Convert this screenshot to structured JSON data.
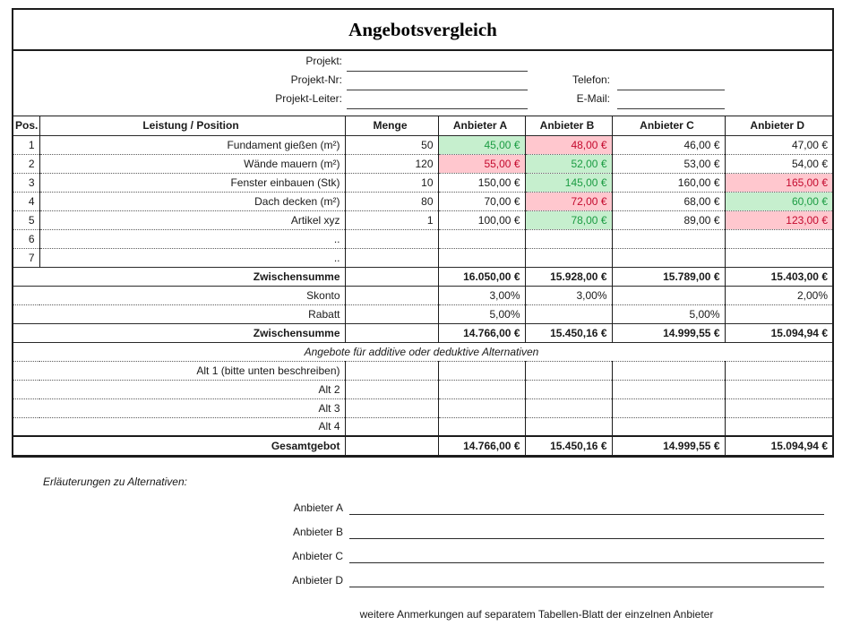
{
  "title": "Angebotsvergleich",
  "project_fields": {
    "left": [
      {
        "label": "Projekt:",
        "value": ""
      },
      {
        "label": "Projekt-Nr:",
        "value": ""
      },
      {
        "label": "Projekt-Leiter:",
        "value": ""
      }
    ],
    "right": [
      {
        "label": "Telefon:",
        "value": ""
      },
      {
        "label": "E-Mail:",
        "value": ""
      }
    ]
  },
  "colors": {
    "best_bg": "#c6efce",
    "best_text": "#1c9c43",
    "worst_bg": "#ffc7ce",
    "worst_text": "#c40a2e"
  },
  "table": {
    "columns": [
      "Pos.",
      "Leistung / Position",
      "Menge",
      "Anbieter A",
      "Anbieter B",
      "Anbieter C",
      "Anbieter D"
    ],
    "rows": [
      {
        "type": "header",
        "top": "none",
        "cells": [
          "Pos.",
          "Leistung / Position",
          "Menge",
          "Anbieter A",
          "Anbieter B",
          "Anbieter C",
          "Anbieter D"
        ]
      },
      {
        "type": "item",
        "top": "solid",
        "pos": "1",
        "leistung": "Fundament gießen (m²)",
        "menge": "50",
        "values": [
          {
            "t": "45,00 €",
            "s": "best"
          },
          {
            "t": "48,00 €",
            "s": "worst"
          },
          {
            "t": "46,00 €",
            "s": ""
          },
          {
            "t": "47,00 €",
            "s": ""
          }
        ]
      },
      {
        "type": "item",
        "top": "dotted",
        "pos": "2",
        "leistung": "Wände mauern (m²)",
        "menge": "120",
        "values": [
          {
            "t": "55,00 €",
            "s": "worst"
          },
          {
            "t": "52,00 €",
            "s": "best"
          },
          {
            "t": "53,00 €",
            "s": ""
          },
          {
            "t": "54,00 €",
            "s": ""
          }
        ]
      },
      {
        "type": "item",
        "top": "dotted",
        "pos": "3",
        "leistung": "Fenster einbauen (Stk)",
        "menge": "10",
        "values": [
          {
            "t": "150,00 €",
            "s": ""
          },
          {
            "t": "145,00 €",
            "s": "best"
          },
          {
            "t": "160,00 €",
            "s": ""
          },
          {
            "t": "165,00 €",
            "s": "worst"
          }
        ]
      },
      {
        "type": "item",
        "top": "dotted",
        "pos": "4",
        "leistung": "Dach decken (m²)",
        "menge": "80",
        "values": [
          {
            "t": "70,00 €",
            "s": ""
          },
          {
            "t": "72,00 €",
            "s": "worst"
          },
          {
            "t": "68,00 €",
            "s": ""
          },
          {
            "t": "60,00 €",
            "s": "best"
          }
        ]
      },
      {
        "type": "item",
        "top": "dotted",
        "pos": "5",
        "leistung": "Artikel xyz",
        "menge": "1",
        "values": [
          {
            "t": "100,00 €",
            "s": ""
          },
          {
            "t": "78,00 €",
            "s": "best"
          },
          {
            "t": "89,00 €",
            "s": ""
          },
          {
            "t": "123,00 €",
            "s": "worst"
          }
        ]
      },
      {
        "type": "item",
        "top": "dotted",
        "pos": "6",
        "leistung": "..",
        "menge": "",
        "values": [
          {
            "t": "",
            "s": ""
          },
          {
            "t": "",
            "s": ""
          },
          {
            "t": "",
            "s": ""
          },
          {
            "t": "",
            "s": ""
          }
        ]
      },
      {
        "type": "item",
        "top": "dotted",
        "pos": "7",
        "leistung": "..",
        "menge": "",
        "values": [
          {
            "t": "",
            "s": ""
          },
          {
            "t": "",
            "s": ""
          },
          {
            "t": "",
            "s": ""
          },
          {
            "t": "",
            "s": ""
          }
        ]
      },
      {
        "type": "summary",
        "top": "solid",
        "bold": true,
        "label": "Zwischensumme",
        "values": [
          "16.050,00 €",
          "15.928,00 €",
          "15.789,00 €",
          "15.403,00 €"
        ]
      },
      {
        "type": "summary",
        "top": "solid",
        "bold": false,
        "label": "Skonto",
        "values": [
          "3,00%",
          "3,00%",
          "",
          "2,00%"
        ]
      },
      {
        "type": "summary",
        "top": "dotted",
        "bold": false,
        "label": "Rabatt",
        "values": [
          "5,00%",
          "",
          "5,00%",
          ""
        ]
      },
      {
        "type": "summary",
        "top": "solid",
        "bold": true,
        "label": "Zwischensumme",
        "values": [
          "14.766,00 €",
          "15.450,16 €",
          "14.999,55 €",
          "15.094,94 €"
        ]
      },
      {
        "type": "span",
        "top": "solid",
        "label": "Angebote für additive oder deduktive Alternativen"
      },
      {
        "type": "alt",
        "top": "dotted",
        "label": "Alt 1 (bitte unten beschreiben)"
      },
      {
        "type": "alt",
        "top": "dotted",
        "label": "Alt 2"
      },
      {
        "type": "alt",
        "top": "dotted",
        "label": "Alt 3"
      },
      {
        "type": "alt",
        "top": "dotted",
        "label": "Alt 4"
      },
      {
        "type": "summary",
        "top": "solid2",
        "bold": true,
        "label": "Gesamtgebot",
        "values": [
          "14.766,00 €",
          "15.450,16 €",
          "14.999,55 €",
          "15.094,94 €"
        ]
      }
    ]
  },
  "footer": {
    "explanations_heading": "Erläuterungen zu Alternativen:",
    "anbieter_lines": [
      {
        "label": "Anbieter A",
        "value": ""
      },
      {
        "label": "Anbieter B",
        "value": ""
      },
      {
        "label": "Anbieter C",
        "value": ""
      },
      {
        "label": "Anbieter D",
        "value": ""
      }
    ],
    "note": "weitere Anmerkungen auf separatem Tabellen-Blatt der einzelnen Anbieter"
  }
}
